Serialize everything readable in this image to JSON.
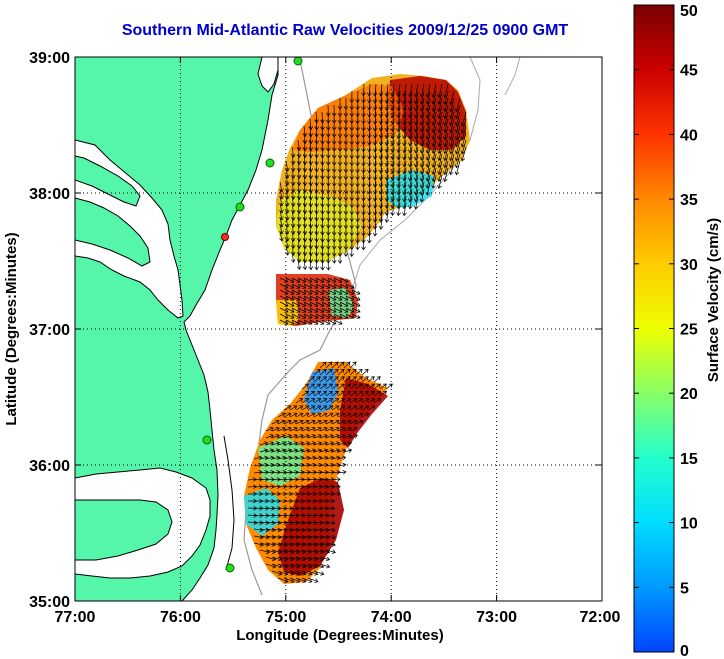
{
  "title": "Southern Mid-Atlantic Raw Velocities 2009/12/25 0900 GMT",
  "xlabel": "Longitude (Degrees:Minutes)",
  "ylabel": "Latitude (Degrees:Minutes)",
  "x_ticks": [
    "77:00",
    "76:00",
    "75:00",
    "74:00",
    "73:00",
    "72:00"
  ],
  "y_ticks": [
    "39:00",
    "38:00",
    "37:00",
    "36:00",
    "35:00"
  ],
  "colorbar": {
    "label": "Surface Velocity (cm/s)",
    "ticks": [
      "0",
      "5",
      "10",
      "15",
      "20",
      "25",
      "30",
      "35",
      "40",
      "45",
      "50"
    ],
    "min": 0,
    "max": 50
  },
  "colors": {
    "land": "#55f5aa",
    "title": "#0000cc",
    "station": "#22dd22",
    "station_alert": "#ee3322"
  }
}
